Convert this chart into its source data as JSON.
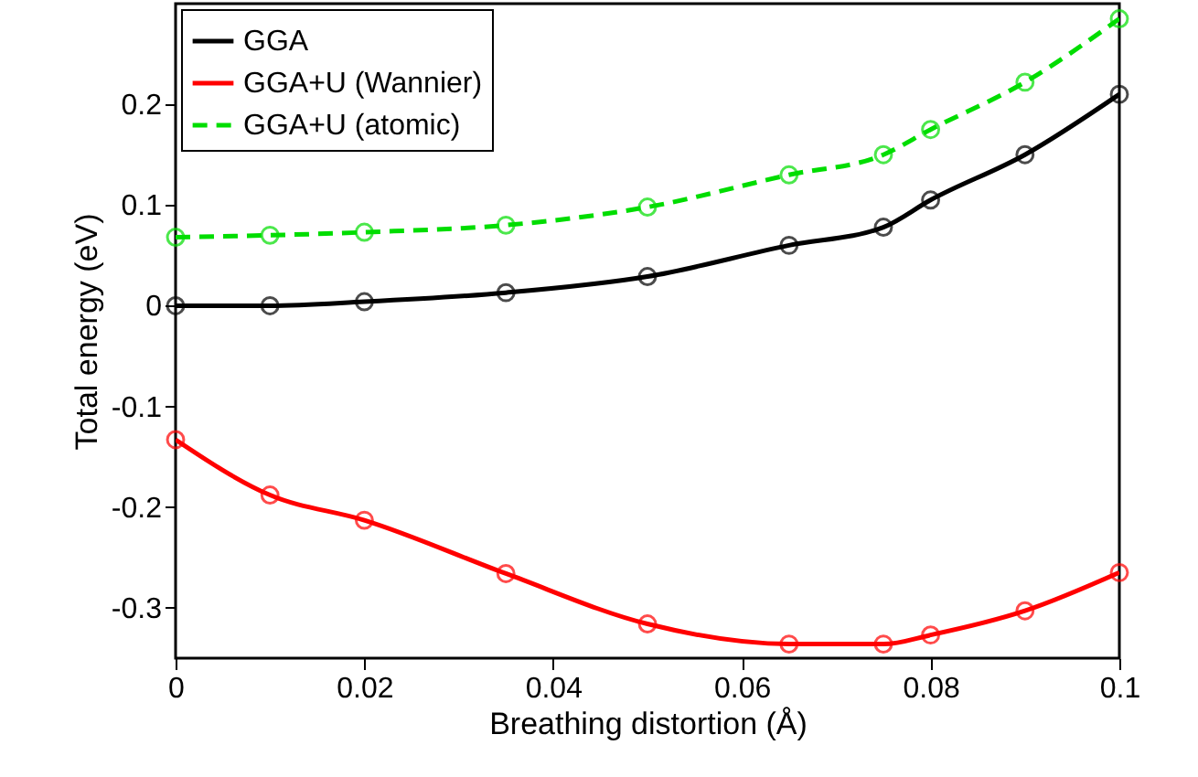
{
  "chart_data": {
    "type": "line",
    "xlabel": "Breathing distortion (Å)",
    "ylabel": "Total energy (eV)",
    "x": [
      0,
      0.01,
      0.02,
      0.035,
      0.05,
      0.065,
      0.075,
      0.08,
      0.09,
      0.1
    ],
    "xlim": [
      0,
      0.1
    ],
    "xticks": [
      0,
      0.02,
      0.04,
      0.06,
      0.08,
      0.1
    ],
    "ylim": [
      -0.35,
      0.3
    ],
    "yticks": [
      -0.3,
      -0.2,
      -0.1,
      0,
      0.1,
      0.2
    ],
    "grid": false,
    "legend": "top left",
    "marker": "circle",
    "series": [
      {
        "name": "GGA",
        "color": "#000000",
        "line_style": "solid",
        "values": [
          0,
          0,
          0.004,
          0.013,
          0.029,
          0.06,
          0.078,
          0.105,
          0.15,
          0.21
        ]
      },
      {
        "name": "GGA+U (Wannier)",
        "color": "#ff0000",
        "line_style": "solid",
        "values": [
          -0.133,
          -0.188,
          -0.213,
          -0.266,
          -0.316,
          -0.336,
          -0.336,
          -0.327,
          -0.303,
          -0.265
        ]
      },
      {
        "name": "GGA+U (atomic)",
        "color": "#00dd00",
        "line_style": "dashed",
        "values": [
          0.068,
          0.07,
          0.073,
          0.08,
          0.098,
          0.13,
          0.15,
          0.175,
          0.222,
          0.285
        ]
      }
    ]
  }
}
